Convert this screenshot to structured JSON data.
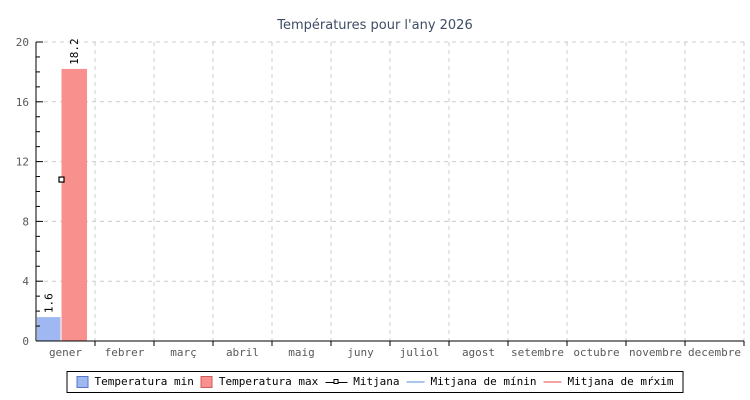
{
  "title": "Températures pour l'any 2026",
  "colors": {
    "background": "#ffffff",
    "title": "#3f4d63",
    "axis": "#000000",
    "grid": "#cccccc",
    "tick_label": "#595959",
    "bar_label": "#000000",
    "bar_min_fill": "#9fb8f1",
    "bar_min_border": "#5578c8",
    "bar_max_fill": "#f8918e",
    "bar_max_border": "#d05c5c",
    "mitjana_marker_stroke": "#000000",
    "mitjana_marker_fill": "#ffffff",
    "line_min": "#a9c7e9",
    "line_max": "#f5a3a3",
    "legend_border": "#000000"
  },
  "chart_data": {
    "type": "bar",
    "title": "Températures pour l'any 2026",
    "categories": [
      "gener",
      "febrer",
      "març",
      "abril",
      "maig",
      "juny",
      "juliol",
      "agost",
      "setembre",
      "octubre",
      "novembre",
      "decembre"
    ],
    "series": [
      {
        "name": "Temperatura min",
        "type": "bar",
        "values": [
          1.6,
          null,
          null,
          null,
          null,
          null,
          null,
          null,
          null,
          null,
          null,
          null
        ]
      },
      {
        "name": "Temperatura max",
        "type": "bar",
        "values": [
          18.2,
          null,
          null,
          null,
          null,
          null,
          null,
          null,
          null,
          null,
          null,
          null
        ]
      },
      {
        "name": "Mitjana",
        "type": "point",
        "values": [
          10.8,
          null,
          null,
          null,
          null,
          null,
          null,
          null,
          null,
          null,
          null,
          null
        ]
      },
      {
        "name": "Mitjana de mínin",
        "type": "line",
        "values": [
          null,
          null,
          null,
          null,
          null,
          null,
          null,
          null,
          null,
          null,
          null,
          null
        ]
      },
      {
        "name": "Mitjana de mŕxim",
        "type": "line",
        "values": [
          null,
          null,
          null,
          null,
          null,
          null,
          null,
          null,
          null,
          null,
          null,
          null
        ]
      }
    ],
    "data_labels": {
      "min": "1.6",
      "max": "18.2"
    },
    "xlabel": "",
    "ylabel": "",
    "ylim": [
      0,
      20
    ],
    "y_ticks": [
      0,
      4,
      8,
      12,
      16,
      20
    ],
    "y_minor_step": 1,
    "grid": true,
    "legend_position": "bottom"
  },
  "legend": {
    "items": [
      {
        "label": "Temperatura min",
        "swatch": "rect-min"
      },
      {
        "label": "Temperatura max",
        "swatch": "rect-max"
      },
      {
        "label": "Mitjana",
        "swatch": "marker"
      },
      {
        "label": "Mitjana de mínin",
        "swatch": "line-min"
      },
      {
        "label": "Mitjana de mŕxim",
        "swatch": "line-max"
      }
    ]
  }
}
